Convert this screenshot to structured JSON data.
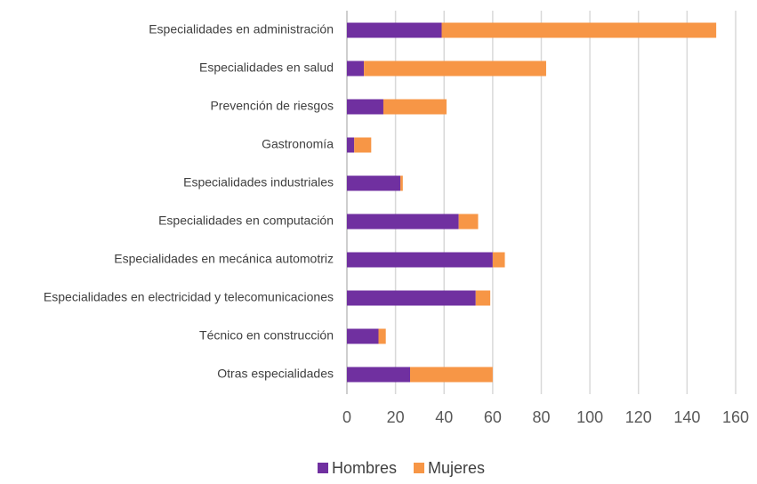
{
  "chart_data": {
    "type": "bar",
    "orientation": "horizontal",
    "stacked": true,
    "categories": [
      "Especialidades en administración",
      "Especialidades en salud",
      "Prevención de riesgos",
      "Gastronomía",
      "Especialidades industriales",
      "Especialidades en computación",
      "Especialidades en mecánica automotriz",
      "Especialidades en electricidad y telecomunicaciones",
      "Técnico en construcción",
      "Otras especialidades"
    ],
    "series": [
      {
        "name": "Hombres",
        "color": "#7030a0",
        "values": [
          39,
          7,
          15,
          3,
          22,
          46,
          60,
          53,
          13,
          26
        ]
      },
      {
        "name": "Mujeres",
        "color": "#f79646",
        "values": [
          113,
          75,
          26,
          7,
          1,
          8,
          5,
          6,
          3,
          34
        ]
      }
    ],
    "xlim": [
      0,
      160
    ],
    "xticks": [
      0,
      20,
      40,
      60,
      80,
      100,
      120,
      140,
      160
    ],
    "grid": true,
    "legend": "bottom"
  }
}
